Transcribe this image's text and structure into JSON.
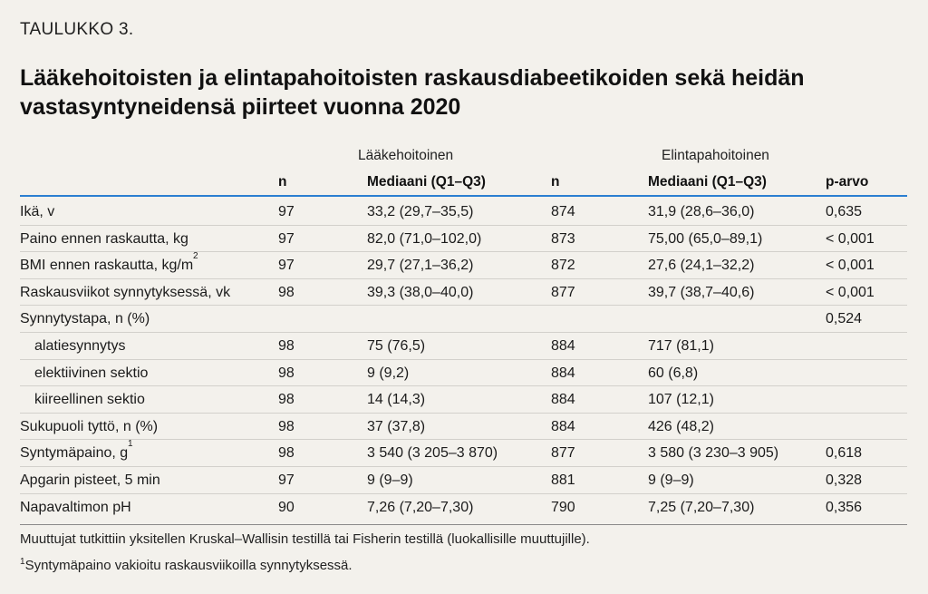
{
  "table_label": "TAULUKKO 3.",
  "title": "Lääkehoitoisten ja elintapahoitoisten raskausdiabeetikoiden sekä heidän vastasyntyneidensä piirteet vuonna 2020",
  "groups": {
    "group1": "Lääkehoitoinen",
    "group2": "Elintapahoitoinen"
  },
  "columns": {
    "n1": "n",
    "median1": "Mediaani (Q1–Q3)",
    "n2": "n",
    "median2": "Mediaani (Q1–Q3)",
    "p": "p-arvo"
  },
  "rows": [
    {
      "label": "Ikä, v",
      "n1": "97",
      "median1": "33,2 (29,7–35,5)",
      "n2": "874",
      "median2": "31,9 (28,6–36,0)",
      "p": "0,635"
    },
    {
      "label": "Paino ennen raskautta, kg",
      "n1": "97",
      "median1": "82,0 (71,0–102,0)",
      "n2": "873",
      "median2": "75,00 (65,0–89,1)",
      "p": "< 0,001"
    },
    {
      "label": "BMI ennen raskautta, kg/m",
      "label_sup": "2",
      "n1": "97",
      "median1": "29,7 (27,1–36,2)",
      "n2": "872",
      "median2": "27,6 (24,1–32,2)",
      "p": "< 0,001"
    },
    {
      "label": "Raskausviikot synnytyksessä, vk",
      "n1": "98",
      "median1": "39,3 (38,0–40,0)",
      "n2": "877",
      "median2": "39,7 (38,7–40,6)",
      "p": "< 0,001"
    },
    {
      "label": "Synnytystapa, n (%)",
      "n1": "",
      "median1": "",
      "n2": "",
      "median2": "",
      "p": "0,524"
    },
    {
      "label": "alatiesynnytys",
      "n1": "98",
      "median1": "75 (76,5)",
      "n2": "884",
      "median2": "717 (81,1)",
      "p": ""
    },
    {
      "label": "elektiivinen sektio",
      "n1": "98",
      "median1": "9 (9,2)",
      "n2": "884",
      "median2": "60 (6,8)",
      "p": ""
    },
    {
      "label": "kiireellinen sektio",
      "n1": "98",
      "median1": "14 (14,3)",
      "n2": "884",
      "median2": "107 (12,1)",
      "p": ""
    },
    {
      "label": "Sukupuoli tyttö, n (%)",
      "n1": "98",
      "median1": "37 (37,8)",
      "n2": "884",
      "median2": "426 (48,2)",
      "p": ""
    },
    {
      "label": "Syntymäpaino, g ",
      "label_sup": "1",
      "n1": "98",
      "median1": "3 540 (3 205–3 870)",
      "n2": "877",
      "median2": "3 580 (3 230–3 905)",
      "p": "0,618"
    },
    {
      "label": "Apgarin pisteet, 5 min",
      "n1": "97",
      "median1": "9 (9–9)",
      "n2": "881",
      "median2": "9 (9–9)",
      "p": "0,328"
    },
    {
      "label": "Napavaltimon pH",
      "n1": "90",
      "median1": "7,26 (7,20–7,30)",
      "n2": "790",
      "median2": "7,25 (7,20–7,30)",
      "p": "0,356"
    }
  ],
  "footnotes": {
    "note": "Muuttujat tutkittiin yksitellen Kruskal–Wallisin testillä tai Fisherin testillä (luokallisille muuttujille).",
    "fn1_marker": "1",
    "fn1": "Syntymäpaino vakioitu raskausviikoilla synnytyksessä."
  }
}
